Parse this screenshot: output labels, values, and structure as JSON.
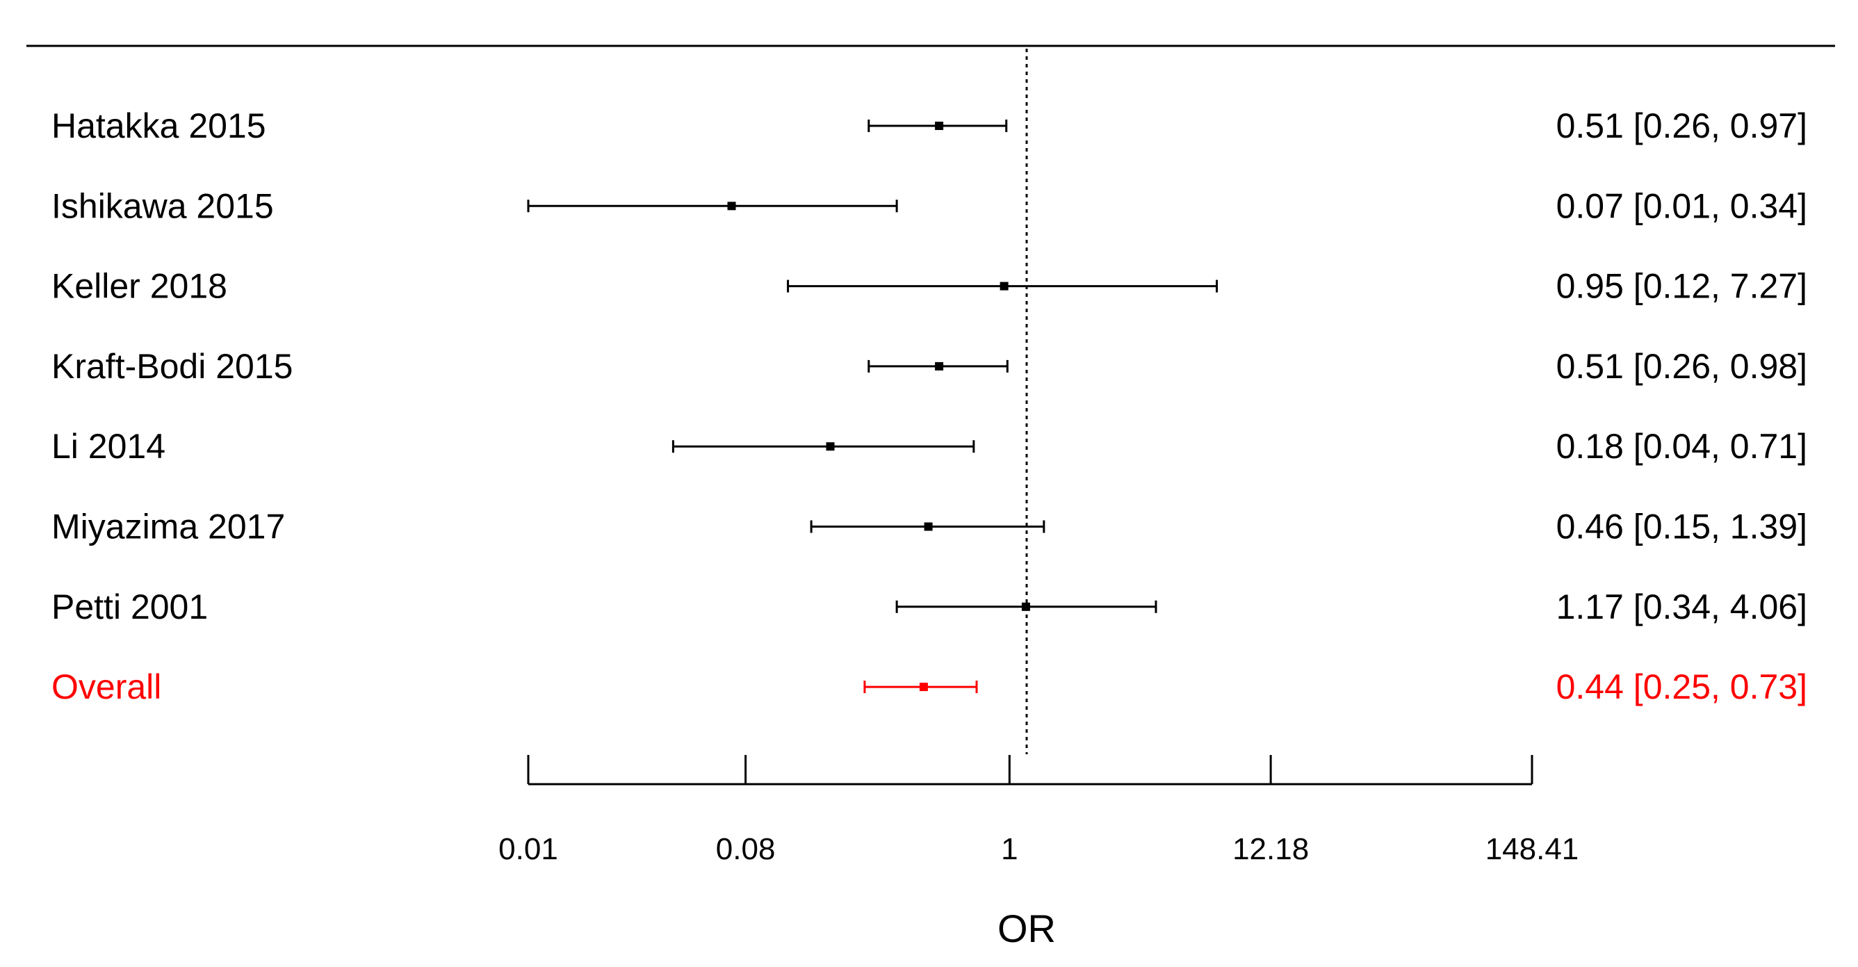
{
  "chart_data": {
    "type": "forest",
    "xlabel": "OR",
    "x_scale": "log",
    "xlim": [
      0.01,
      148.41
    ],
    "x_ticks": [
      "0.01",
      "0.08",
      "1",
      "12.18",
      "148.41"
    ],
    "reference_line": 1,
    "grid": false,
    "rows": [
      {
        "study": "Hatakka 2015",
        "or": 0.51,
        "lower": 0.26,
        "upper": 0.97,
        "text": "0.51 [0.26, 0.97]"
      },
      {
        "study": "Ishikawa 2015",
        "or": 0.07,
        "lower": 0.01,
        "upper": 0.34,
        "text": "0.07 [0.01, 0.34]"
      },
      {
        "study": "Keller 2018",
        "or": 0.95,
        "lower": 0.12,
        "upper": 7.27,
        "text": "0.95 [0.12, 7.27]"
      },
      {
        "study": "Kraft-Bodi 2015",
        "or": 0.51,
        "lower": 0.26,
        "upper": 0.98,
        "text": "0.51 [0.26, 0.98]"
      },
      {
        "study": "Li 2014",
        "or": 0.18,
        "lower": 0.04,
        "upper": 0.71,
        "text": "0.18 [0.04, 0.71]"
      },
      {
        "study": "Miyazima 2017",
        "or": 0.46,
        "lower": 0.15,
        "upper": 1.39,
        "text": "0.46 [0.15, 1.39]"
      },
      {
        "study": "Petti 2001",
        "or": 1.17,
        "lower": 0.34,
        "upper": 4.06,
        "text": "1.17 [0.34, 4.06]"
      }
    ],
    "overall": {
      "study": "Overall",
      "or": 0.44,
      "lower": 0.25,
      "upper": 0.73,
      "text": "0.44 [0.25, 0.73]"
    },
    "colors": {
      "study": "#000000",
      "overall": "#ff0000"
    }
  }
}
